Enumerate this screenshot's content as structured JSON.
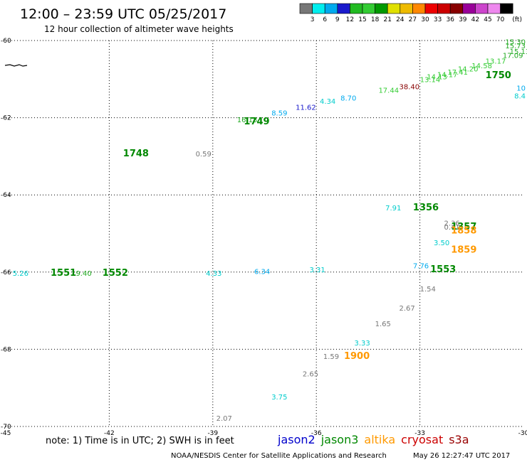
{
  "header": {
    "title": "12:00 – 23:59 UTC 05/25/2017",
    "subtitle": "12 hour collection of altimeter wave heights"
  },
  "colorbar": {
    "colors": [
      "#777777",
      "#00eeee",
      "#00aaee",
      "#1a1acc",
      "#22bb22",
      "#33cc33",
      "#009900",
      "#e0e000",
      "#eebb00",
      "#ff8800",
      "#ee0000",
      "#cc0000",
      "#880000",
      "#990099",
      "#cc44cc",
      "#ee88ee",
      "#000000"
    ],
    "labels": [
      "3",
      "6",
      "9",
      "12",
      "15",
      "18",
      "21",
      "24",
      "27",
      "30",
      "33",
      "36",
      "39",
      "42",
      "45",
      "70"
    ],
    "unit": "(ft)"
  },
  "footer": {
    "note": "note: 1) Time is in UTC; 2) SWH is in feet",
    "satellites": [
      {
        "name": "jason2",
        "color": "#0000cc"
      },
      {
        "name": "jason3",
        "color": "#008800"
      },
      {
        "name": "altika",
        "color": "#ff9900"
      },
      {
        "name": "cryosat",
        "color": "#cc0000"
      },
      {
        "name": "s3a",
        "color": "#990000"
      }
    ],
    "credit": "NOAA/NESDIS Center for Satellite Applications and Research",
    "timestamp": "May 26 12:27:47 UTC 2017"
  },
  "chart_data": {
    "type": "scatter",
    "xlim": [
      -45,
      -30
    ],
    "ylim": [
      -70,
      -60
    ],
    "x_ticks": [
      {
        "v": -45,
        "label": "-45"
      },
      {
        "v": -42,
        "label": "-42"
      },
      {
        "v": -39,
        "label": "-39"
      },
      {
        "v": -36,
        "label": "-36"
      },
      {
        "v": -33,
        "label": "-33"
      },
      {
        "v": -30,
        "label": "-30"
      }
    ],
    "y_ticks": [
      {
        "v": -60,
        "label": "-60"
      },
      {
        "v": -62,
        "label": "-62"
      },
      {
        "v": -64,
        "label": "-64"
      },
      {
        "v": -66,
        "label": "-66"
      },
      {
        "v": -68,
        "label": "-68"
      },
      {
        "v": -70,
        "label": "-70"
      }
    ],
    "grid": "dotted",
    "wave_heights": [
      {
        "x": -44.8,
        "y": -66.1,
        "text": "5.26",
        "color": "#00cccc"
      },
      {
        "x": -43.1,
        "y": -66.1,
        "text": "19.40",
        "color": "#22aa22"
      },
      {
        "x": -39.2,
        "y": -66.1,
        "text": "4.33",
        "color": "#00cccc"
      },
      {
        "x": -37.8,
        "y": -66.05,
        "text": "6.34",
        "color": "#00aaee"
      },
      {
        "x": -36.2,
        "y": -66.0,
        "text": "3.31",
        "color": "#00cccc"
      },
      {
        "x": -39.5,
        "y": -63.0,
        "text": "0.59",
        "color": "#777777"
      },
      {
        "x": -38.3,
        "y": -62.12,
        "text": "16.13",
        "color": "#22aa22"
      },
      {
        "x": -37.3,
        "y": -61.94,
        "text": "8.59",
        "color": "#00aaee"
      },
      {
        "x": -36.6,
        "y": -61.8,
        "text": "11.62",
        "color": "#1a1acc"
      },
      {
        "x": -35.9,
        "y": -61.64,
        "text": "4.34",
        "color": "#00cccc"
      },
      {
        "x": -35.3,
        "y": -61.56,
        "text": "8.70",
        "color": "#00aaee"
      },
      {
        "x": -34.2,
        "y": -61.35,
        "text": "17.44",
        "color": "#33cc33"
      },
      {
        "x": -33.6,
        "y": -61.26,
        "text": "38.40",
        "color": "#880000"
      },
      {
        "x": -33.0,
        "y": -61.08,
        "text": "13.14",
        "color": "#33cc33"
      },
      {
        "x": -32.8,
        "y": -61.0,
        "text": "14.13",
        "color": "#33cc33"
      },
      {
        "x": -32.5,
        "y": -60.95,
        "text": "14.17",
        "color": "#33cc33"
      },
      {
        "x": -32.2,
        "y": -60.88,
        "text": "17.41",
        "color": "#33cc33"
      },
      {
        "x": -31.9,
        "y": -60.8,
        "text": "14.20",
        "color": "#33cc33"
      },
      {
        "x": -31.5,
        "y": -60.72,
        "text": "14.58",
        "color": "#33cc33"
      },
      {
        "x": -31.1,
        "y": -60.6,
        "text": "13.17",
        "color": "#33cc33"
      },
      {
        "x": -30.6,
        "y": -60.45,
        "text": "17.09",
        "color": "#22aa22"
      },
      {
        "x": -30.4,
        "y": -60.35,
        "text": "15.13",
        "color": "#22aa22"
      },
      {
        "x": -29.8,
        "y": -60.2,
        "text": "15.73",
        "color": "#22aa22"
      },
      {
        "x": -29.4,
        "y": -60.1,
        "text": "15.30",
        "color": "#22aa22"
      },
      {
        "x": -28.4,
        "y": -61.3,
        "text": "10",
        "color": "#00aaee"
      },
      {
        "x": -28.4,
        "y": -61.5,
        "text": "8.4",
        "color": "#00cccc"
      },
      {
        "x": -34.0,
        "y": -64.4,
        "text": "7.91",
        "color": "#00cccc"
      },
      {
        "x": -32.3,
        "y": -64.8,
        "text": "2.36",
        "color": "#777777"
      },
      {
        "x": -32.3,
        "y": -64.9,
        "text": "0.41",
        "color": "#777777"
      },
      {
        "x": -32.6,
        "y": -65.3,
        "text": "3.50",
        "color": "#00cccc"
      },
      {
        "x": -33.2,
        "y": -65.9,
        "text": "7.76",
        "color": "#00aaee"
      },
      {
        "x": -33.0,
        "y": -66.5,
        "text": "1.54",
        "color": "#777777"
      },
      {
        "x": -33.6,
        "y": -67.0,
        "text": "2.67",
        "color": "#777777"
      },
      {
        "x": -34.3,
        "y": -67.4,
        "text": "1.65",
        "color": "#777777"
      },
      {
        "x": -34.9,
        "y": -67.9,
        "text": "3.33",
        "color": "#00cccc"
      },
      {
        "x": -35.8,
        "y": -68.25,
        "text": "1.59",
        "color": "#777777"
      },
      {
        "x": -36.4,
        "y": -68.7,
        "text": "2.65",
        "color": "#777777"
      },
      {
        "x": -37.3,
        "y": -69.3,
        "text": "3.75",
        "color": "#00cccc"
      },
      {
        "x": -38.9,
        "y": -69.85,
        "text": "2.07",
        "color": "#777777"
      }
    ],
    "pass_times": [
      {
        "x": -41.6,
        "y": -63.0,
        "text": "1748",
        "color": "#008800"
      },
      {
        "x": -38.1,
        "y": -62.17,
        "text": "1749",
        "color": "#008800"
      },
      {
        "x": -31.1,
        "y": -60.98,
        "text": "1750",
        "color": "#008800"
      },
      {
        "x": -33.2,
        "y": -64.4,
        "text": "1356",
        "color": "#008800"
      },
      {
        "x": -32.1,
        "y": -64.9,
        "text": "1357",
        "color": "#008800"
      },
      {
        "x": -32.1,
        "y": -65.0,
        "text": "1858",
        "color": "#ff9900"
      },
      {
        "x": -32.1,
        "y": -65.5,
        "text": "1859",
        "color": "#ff9900"
      },
      {
        "x": -32.7,
        "y": -66.0,
        "text": "1553",
        "color": "#008800"
      },
      {
        "x": -43.7,
        "y": -66.1,
        "text": "1551",
        "color": "#008800"
      },
      {
        "x": -42.2,
        "y": -66.1,
        "text": "1552",
        "color": "#008800"
      },
      {
        "x": -35.2,
        "y": -68.25,
        "text": "1900",
        "color": "#ff9900"
      }
    ]
  }
}
